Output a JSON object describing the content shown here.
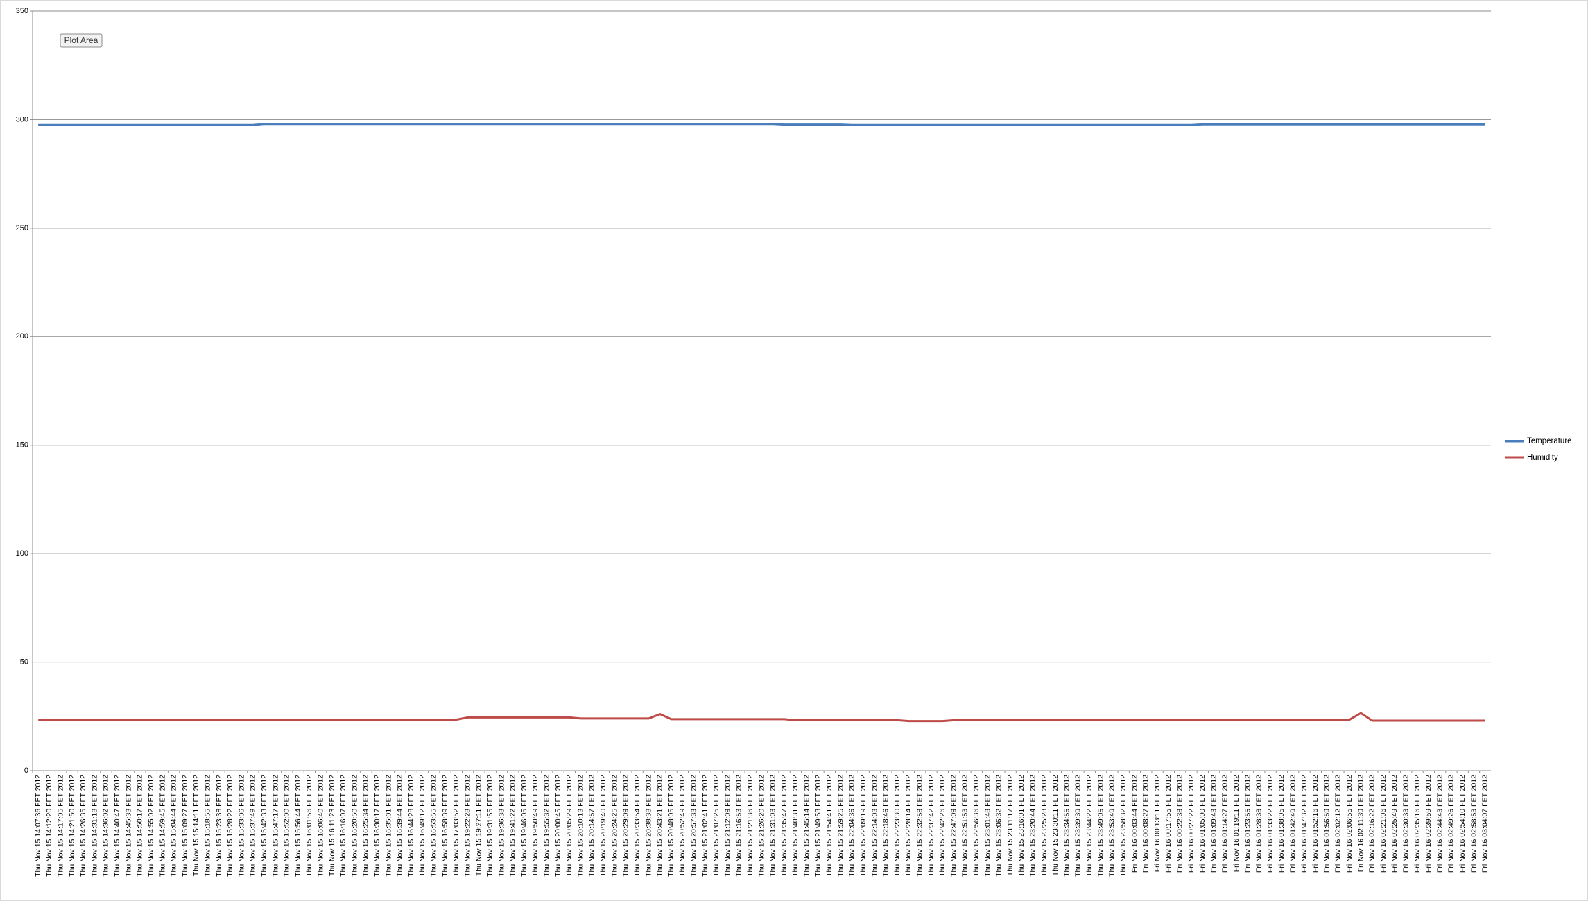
{
  "chart_data": {
    "type": "line",
    "tooltip": "Plot Area",
    "categories": [
      "Thu Nov 15 14:07:36 FET 2012",
      "Thu Nov 15 14:12:20 FET 2012",
      "Thu Nov 15 14:17:05 FET 2012",
      "Thu Nov 15 14:21:50 FET 2012",
      "Thu Nov 15 14:26:35 FET 2012",
      "Thu Nov 15 14:31:18 FET 2012",
      "Thu Nov 15 14:36:02 FET 2012",
      "Thu Nov 15 14:40:47 FET 2012",
      "Thu Nov 15 14:45:33 FET 2012",
      "Thu Nov 15 14:50:17 FET 2012",
      "Thu Nov 15 14:55:02 FET 2012",
      "Thu Nov 15 14:59:45 FET 2012",
      "Thu Nov 15 15:04:44 FET 2012",
      "Thu Nov 15 15:09:27 FET 2012",
      "Thu Nov 15 15:14:11 FET 2012",
      "Thu Nov 15 15:18:55 FET 2012",
      "Thu Nov 15 15:23:38 FET 2012",
      "Thu Nov 15 15:28:22 FET 2012",
      "Thu Nov 15 15:33:06 FET 2012",
      "Thu Nov 15 15:37:49 FET 2012",
      "Thu Nov 15 15:42:33 FET 2012",
      "Thu Nov 15 15:47:17 FET 2012",
      "Thu Nov 15 15:52:00 FET 2012",
      "Thu Nov 15 15:56:44 FET 2012",
      "Thu Nov 15 16:01:56 FET 2012",
      "Thu Nov 15 16:06:40 FET 2012",
      "Thu Nov 15 16:11:23 FET 2012",
      "Thu Nov 15 16:16:07 FET 2012",
      "Thu Nov 15 16:20:50 FET 2012",
      "Thu Nov 15 16:25:34 FET 2012",
      "Thu Nov 15 16:30:17 FET 2012",
      "Thu Nov 15 16:35:01 FET 2012",
      "Thu Nov 15 16:39:44 FET 2012",
      "Thu Nov 15 16:44:28 FET 2012",
      "Thu Nov 15 16:49:12 FET 2012",
      "Thu Nov 15 16:53:55 FET 2012",
      "Thu Nov 15 16:58:39 FET 2012",
      "Thu Nov 15 17:03:52 FET 2012",
      "Thu Nov 15 19:22:28 FET 2012",
      "Thu Nov 15 19:27:11 FET 2012",
      "Thu Nov 15 19:31:55 FET 2012",
      "Thu Nov 15 19:36:38 FET 2012",
      "Thu Nov 15 19:41:22 FET 2012",
      "Thu Nov 15 19:46:05 FET 2012",
      "Thu Nov 15 19:50:49 FET 2012",
      "Thu Nov 15 19:55:32 FET 2012",
      "Thu Nov 15 20:00:45 FET 2012",
      "Thu Nov 15 20:05:29 FET 2012",
      "Thu Nov 15 20:10:13 FET 2012",
      "Thu Nov 15 20:14:57 FET 2012",
      "Thu Nov 15 20:19:40 FET 2012",
      "Thu Nov 15 20:24:25 FET 2012",
      "Thu Nov 15 20:29:09 FET 2012",
      "Thu Nov 15 20:33:54 FET 2012",
      "Thu Nov 15 20:38:38 FET 2012",
      "Thu Nov 15 20:43:21 FET 2012",
      "Thu Nov 15 20:48:05 FET 2012",
      "Thu Nov 15 20:52:49 FET 2012",
      "Thu Nov 15 20:57:33 FET 2012",
      "Thu Nov 15 21:02:41 FET 2012",
      "Thu Nov 15 21:07:25 FET 2012",
      "Thu Nov 15 21:12:09 FET 2012",
      "Thu Nov 15 21:16:53 FET 2012",
      "Thu Nov 15 21:21:36 FET 2012",
      "Thu Nov 15 21:26:20 FET 2012",
      "Thu Nov 15 21:31:03 FET 2012",
      "Thu Nov 15 21:35:47 FET 2012",
      "Thu Nov 15 21:40:31 FET 2012",
      "Thu Nov 15 21:45:14 FET 2012",
      "Thu Nov 15 21:49:58 FET 2012",
      "Thu Nov 15 21:54:41 FET 2012",
      "Thu Nov 15 21:59:25 FET 2012",
      "Thu Nov 15 22:04:36 FET 2012",
      "Thu Nov 15 22:09:19 FET 2012",
      "Thu Nov 15 22:14:03 FET 2012",
      "Thu Nov 15 22:18:46 FET 2012",
      "Thu Nov 15 22:23:30 FET 2012",
      "Thu Nov 15 22:28:14 FET 2012",
      "Thu Nov 15 22:32:58 FET 2012",
      "Thu Nov 15 22:37:42 FET 2012",
      "Thu Nov 15 22:42:26 FET 2012",
      "Thu Nov 15 22:47:09 FET 2012",
      "Thu Nov 15 22:51:53 FET 2012",
      "Thu Nov 15 22:56:36 FET 2012",
      "Thu Nov 15 23:01:48 FET 2012",
      "Thu Nov 15 23:06:32 FET 2012",
      "Thu Nov 15 23:11:17 FET 2012",
      "Thu Nov 15 23:16:01 FET 2012",
      "Thu Nov 15 23:20:44 FET 2012",
      "Thu Nov 15 23:25:28 FET 2012",
      "Thu Nov 15 23:30:11 FET 2012",
      "Thu Nov 15 23:34:55 FET 2012",
      "Thu Nov 15 23:39:39 FET 2012",
      "Thu Nov 15 23:44:22 FET 2012",
      "Thu Nov 15 23:49:05 FET 2012",
      "Thu Nov 15 23:53:49 FET 2012",
      "Thu Nov 15 23:58:32 FET 2012",
      "Fri Nov 16 00:03:44 FET 2012",
      "Fri Nov 16 00:08:27 FET 2012",
      "Fri Nov 16 00:13:11 FET 2012",
      "Fri Nov 16 00:17:55 FET 2012",
      "Fri Nov 16 00:22:38 FET 2012",
      "Fri Nov 16 00:27:22 FET 2012",
      "Fri Nov 16 01:05:00 FET 2012",
      "Fri Nov 16 01:09:43 FET 2012",
      "Fri Nov 16 01:14:27 FET 2012",
      "Fri Nov 16 01:19:11 FET 2012",
      "Fri Nov 16 01:23:55 FET 2012",
      "Fri Nov 16 01:28:38 FET 2012",
      "Fri Nov 16 01:33:22 FET 2012",
      "Fri Nov 16 01:38:05 FET 2012",
      "Fri Nov 16 01:42:49 FET 2012",
      "Fri Nov 16 01:47:32 FET 2012",
      "Fri Nov 16 01:52:16 FET 2012",
      "Fri Nov 16 01:56:59 FET 2012",
      "Fri Nov 16 02:02:12 FET 2012",
      "Fri Nov 16 02:06:55 FET 2012",
      "Fri Nov 16 02:11:39 FET 2012",
      "Fri Nov 16 02:16:22 FET 2012",
      "Fri Nov 16 02:21:06 FET 2012",
      "Fri Nov 16 02:25:49 FET 2012",
      "Fri Nov 16 02:30:33 FET 2012",
      "Fri Nov 16 02:35:16 FET 2012",
      "Fri Nov 16 02:39:59 FET 2012",
      "Fri Nov 16 02:44:43 FET 2012",
      "Fri Nov 16 02:49:26 FET 2012",
      "Fri Nov 16 02:54:10 FET 2012",
      "Fri Nov 16 02:58:53 FET 2012",
      "Fri Nov 16 03:04:07 FET 2012"
    ],
    "series": [
      {
        "name": "Temperature",
        "color": "#4a7ebb",
        "values": [
          297.5,
          297.5,
          297.5,
          297.5,
          297.5,
          297.5,
          297.5,
          297.5,
          297.5,
          297.5,
          297.5,
          297.5,
          297.5,
          297.5,
          297.5,
          297.5,
          297.5,
          297.5,
          297.5,
          297.5,
          298,
          298,
          298,
          298,
          298,
          298,
          298,
          298,
          298,
          298,
          298,
          298,
          298,
          298,
          298,
          298,
          298,
          298,
          298,
          298,
          298,
          298,
          298,
          298,
          298,
          298,
          298,
          298,
          298,
          298,
          298,
          298,
          298,
          298,
          298,
          298,
          298,
          298,
          298,
          298,
          298,
          298,
          298,
          298,
          298,
          298,
          297.7,
          297.7,
          297.7,
          297.7,
          297.7,
          297.7,
          297.5,
          297.5,
          297.5,
          297.5,
          297.5,
          297.5,
          297.5,
          297.5,
          297.5,
          297.5,
          297.5,
          297.5,
          297.5,
          297.5,
          297.5,
          297.5,
          297.5,
          297.5,
          297.5,
          297.5,
          297.5,
          297.5,
          297.5,
          297.5,
          297.5,
          297.5,
          297.5,
          297.5,
          297.5,
          297.5,
          297.5,
          297.8,
          297.8,
          297.8,
          297.8,
          297.8,
          297.8,
          297.8,
          297.8,
          297.8,
          297.8,
          297.8,
          297.8,
          297.8,
          297.8,
          297.8,
          297.8,
          297.8,
          297.8,
          297.8,
          297.8,
          297.8,
          297.8,
          297.8,
          297.8,
          297.8,
          297.8
        ]
      },
      {
        "name": "Humidity",
        "color": "#be4b48",
        "values": [
          23.5,
          23.5,
          23.5,
          23.5,
          23.5,
          23.5,
          23.5,
          23.5,
          23.5,
          23.5,
          23.5,
          23.5,
          23.5,
          23.5,
          23.5,
          23.5,
          23.5,
          23.5,
          23.5,
          23.5,
          23.5,
          23.5,
          23.5,
          23.5,
          23.5,
          23.5,
          23.5,
          23.5,
          23.5,
          23.5,
          23.5,
          23.5,
          23.5,
          23.5,
          23.5,
          23.5,
          23.5,
          23.5,
          24.5,
          24.5,
          24.5,
          24.5,
          24.5,
          24.5,
          24.5,
          24.5,
          24.5,
          24.5,
          24,
          24,
          24,
          24,
          24,
          24,
          24,
          26,
          23.7,
          23.7,
          23.7,
          23.7,
          23.7,
          23.7,
          23.7,
          23.7,
          23.7,
          23.7,
          23.7,
          23.2,
          23.2,
          23.2,
          23.2,
          23.2,
          23.2,
          23.2,
          23.2,
          23.2,
          23.2,
          22.8,
          22.8,
          22.8,
          22.8,
          23.2,
          23.2,
          23.2,
          23.2,
          23.2,
          23.2,
          23.2,
          23.2,
          23.2,
          23.2,
          23.2,
          23.2,
          23.2,
          23.2,
          23.2,
          23.2,
          23.2,
          23.2,
          23.2,
          23.2,
          23.2,
          23.2,
          23.2,
          23.2,
          23.5,
          23.5,
          23.5,
          23.5,
          23.5,
          23.5,
          23.5,
          23.5,
          23.5,
          23.5,
          23.5,
          23.5,
          26.5,
          23,
          23,
          23,
          23,
          23,
          23,
          23,
          23,
          23,
          23,
          23
        ]
      }
    ],
    "ylim": [
      0,
      350
    ],
    "yticks": [
      0,
      50,
      100,
      150,
      200,
      250,
      300,
      350
    ],
    "grid": true,
    "legend": "right"
  }
}
